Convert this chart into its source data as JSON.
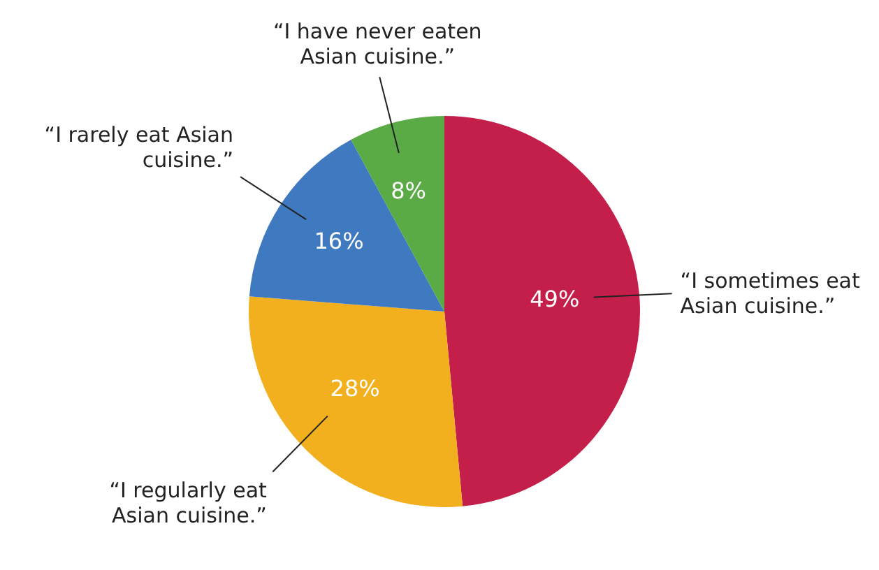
{
  "chart_data": {
    "type": "pie",
    "categories": [
      "“I sometimes eat Asian cuisine.”",
      "“I regularly eat Asian cuisine.”",
      "“I rarely eat Asian cuisine.”",
      "“I have never eaten Asian cuisine.”"
    ],
    "values": [
      49,
      28,
      16,
      8
    ],
    "colors": [
      "#c41e4a",
      "#f2b01e",
      "#3f7ac0",
      "#5aab46"
    ],
    "value_labels": [
      "49%",
      "28%",
      "16%",
      "8%"
    ]
  }
}
